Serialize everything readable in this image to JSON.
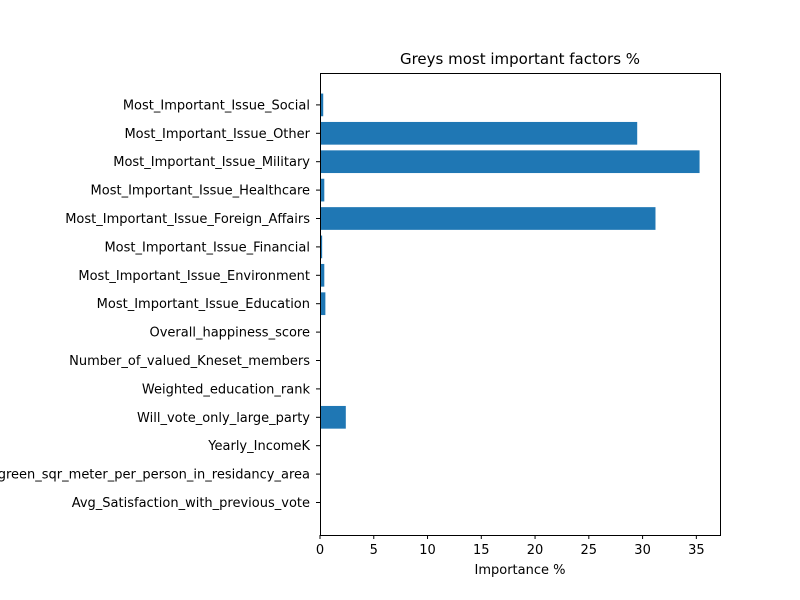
{
  "chart_data": {
    "type": "bar",
    "orientation": "horizontal",
    "title": "Greys most important factors %",
    "xlabel": "Importance %",
    "ylabel": "",
    "xlim": [
      0,
      37.2
    ],
    "xticks": [
      0,
      5,
      10,
      15,
      20,
      25,
      30,
      35
    ],
    "grid": false,
    "bar_color": "#1f77b4",
    "categories": [
      "Avg_Satisfaction_with_previous_vote",
      "Avg_green_sqr_meter_per_person_in_residancy_area",
      "Yearly_IncomeK",
      "Will_vote_only_large_party",
      "Weighted_education_rank",
      "Number_of_valued_Kneset_members",
      "Overall_happiness_score",
      "Most_Important_Issue_Education",
      "Most_Important_Issue_Environment",
      "Most_Important_Issue_Financial",
      "Most_Important_Issue_Foreign_Affairs",
      "Most_Important_Issue_Healthcare",
      "Most_Important_Issue_Military",
      "Most_Important_Issue_Other",
      "Most_Important_Issue_Social"
    ],
    "values": [
      0.02,
      0.02,
      0.03,
      2.4,
      0.02,
      0.03,
      0.02,
      0.5,
      0.4,
      0.2,
      31.2,
      0.4,
      35.3,
      29.5,
      0.3
    ]
  }
}
